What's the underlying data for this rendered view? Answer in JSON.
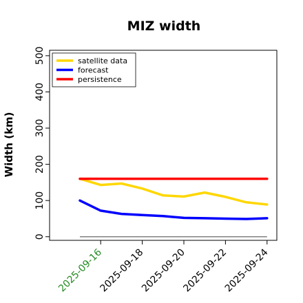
{
  "chart_data": {
    "type": "line",
    "title": "MIZ width",
    "xlabel": "",
    "ylabel": "Width (km)",
    "x": [
      "2025-09-15",
      "2025-09-16",
      "2025-09-17",
      "2025-09-18",
      "2025-09-19",
      "2025-09-20",
      "2025-09-21",
      "2025-09-22",
      "2025-09-23",
      "2025-09-24"
    ],
    "x_ticks": [
      "2025-09-16",
      "2025-09-18",
      "2025-09-20",
      "2025-09-22",
      "2025-09-24"
    ],
    "highlight_tick": "2025-09-16",
    "highlight_color": "#228B22",
    "ylim": [
      -10,
      515
    ],
    "y_ticks": [
      0,
      100,
      200,
      300,
      400,
      500
    ],
    "grid": false,
    "legend_position": "top-left",
    "zero_line_color": "#808080",
    "series": [
      {
        "name": "satellite data",
        "color": "#FFD700",
        "values": [
          160,
          143,
          147,
          133,
          114,
          111,
          122,
          110,
          95,
          89
        ]
      },
      {
        "name": "forecast",
        "color": "#0000FF",
        "values": [
          100,
          72,
          63,
          60,
          57,
          52,
          51,
          50,
          49,
          51
        ]
      },
      {
        "name": "persistence",
        "color": "#FF0000",
        "values": [
          160,
          160,
          160,
          160,
          160,
          160,
          160,
          160,
          160,
          160
        ]
      }
    ]
  }
}
